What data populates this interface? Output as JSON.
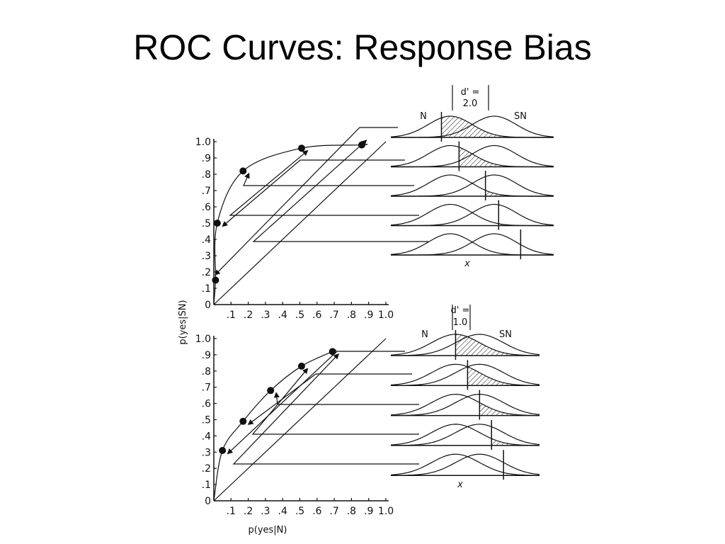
{
  "slide": {
    "title": "ROC Curves: Response Bias"
  },
  "chart_data": [
    {
      "type": "line",
      "xlabel": "",
      "ylabel": "p(yes|SN)",
      "xlim": [
        0,
        1
      ],
      "ylim": [
        0,
        1
      ],
      "x_ticks": [
        "",
        ".1",
        ".2",
        ".3",
        ".4",
        ".5",
        ".6",
        ".7",
        ".8",
        ".9",
        "1.0"
      ],
      "y_ticks": [
        "0",
        ".1",
        ".2",
        ".3",
        ".4",
        ".5",
        ".6",
        ".7",
        ".8",
        ".9",
        "1.0"
      ],
      "series": [
        {
          "points": [
            [
              0.01,
              0.15
            ],
            [
              0.02,
              0.5
            ],
            [
              0.17,
              0.82
            ],
            [
              0.51,
              0.96
            ],
            [
              0.86,
              0.98
            ]
          ]
        }
      ],
      "distributions": {
        "d_prime_label": "d' =",
        "d_prime_value": "2.0",
        "noise_label": "N",
        "signal_label": "SN",
        "axis_label": "x",
        "criteria": [
          -1.3,
          -0.5,
          0.7,
          1.3,
          2.3
        ]
      }
    },
    {
      "type": "line",
      "xlabel": "p(yes|N)",
      "ylabel": "",
      "xlim": [
        0,
        1
      ],
      "ylim": [
        0,
        1
      ],
      "x_ticks": [
        "",
        ".1",
        ".2",
        ".3",
        ".4",
        ".5",
        ".6",
        ".7",
        ".8",
        ".9",
        "1.0"
      ],
      "y_ticks": [
        "0",
        ".1",
        ".2",
        ".3",
        ".4",
        ".5",
        ".6",
        ".7",
        ".8",
        ".9",
        "1.0"
      ],
      "series": [
        {
          "points": [
            [
              0.05,
              0.31
            ],
            [
              0.17,
              0.49
            ],
            [
              0.33,
              0.68
            ],
            [
              0.51,
              0.83
            ],
            [
              0.69,
              0.92
            ]
          ]
        }
      ],
      "distributions": {
        "d_prime_label": "d' =",
        "d_prime_value": "1.0",
        "noise_label": "N",
        "signal_label": "SN",
        "axis_label": "x",
        "criteria": [
          -0.5,
          0.0,
          0.5,
          1.0,
          1.5
        ]
      }
    }
  ]
}
